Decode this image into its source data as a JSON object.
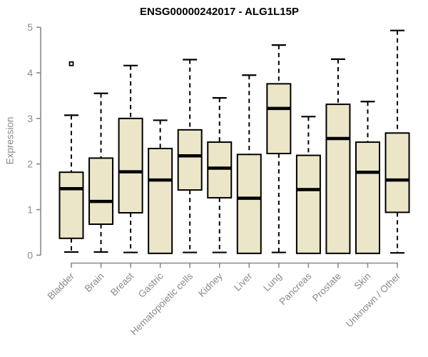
{
  "title": "ENSG00000242017 - ALG1L15P",
  "chart_data": {
    "type": "boxplot",
    "title": "ENSG00000242017 - ALG1L15P",
    "xlabel": "",
    "ylabel": "Expression",
    "ylim": [
      0,
      5
    ],
    "yticks": [
      0,
      1,
      2,
      3,
      4,
      5
    ],
    "grid": false,
    "legend": "none",
    "categories": [
      "Bladder",
      "Brain",
      "Breast",
      "Gastric",
      "Hematopoietic cells",
      "Kidney",
      "Liver",
      "Lung",
      "Pancreas",
      "Prostate",
      "Skin",
      "Unknown / Other"
    ],
    "series": [
      {
        "category": "Bladder",
        "lower": 0.07,
        "q1": 0.37,
        "median": 1.46,
        "q3": 1.82,
        "upper": 3.07,
        "outliers": [
          4.2
        ]
      },
      {
        "category": "Brain",
        "lower": 0.07,
        "q1": 0.68,
        "median": 1.18,
        "q3": 2.13,
        "upper": 3.55,
        "outliers": []
      },
      {
        "category": "Breast",
        "lower": 0.06,
        "q1": 0.93,
        "median": 1.83,
        "q3": 3.0,
        "upper": 4.16,
        "outliers": []
      },
      {
        "category": "Gastric",
        "lower": 0.04,
        "q1": 0.04,
        "median": 1.65,
        "q3": 2.34,
        "upper": 2.96,
        "outliers": []
      },
      {
        "category": "Hematopoietic cells",
        "lower": 0.06,
        "q1": 1.43,
        "median": 2.18,
        "q3": 2.75,
        "upper": 4.29,
        "outliers": []
      },
      {
        "category": "Kidney",
        "lower": 0.06,
        "q1": 1.26,
        "median": 1.91,
        "q3": 2.48,
        "upper": 3.45,
        "outliers": []
      },
      {
        "category": "Liver",
        "lower": 0.04,
        "q1": 0.04,
        "median": 1.25,
        "q3": 2.21,
        "upper": 3.95,
        "outliers": []
      },
      {
        "category": "Lung",
        "lower": 0.06,
        "q1": 2.23,
        "median": 3.22,
        "q3": 3.76,
        "upper": 4.61,
        "outliers": []
      },
      {
        "category": "Pancreas",
        "lower": 0.04,
        "q1": 0.04,
        "median": 1.44,
        "q3": 2.19,
        "upper": 3.04,
        "outliers": []
      },
      {
        "category": "Prostate",
        "lower": 0.04,
        "q1": 0.04,
        "median": 2.56,
        "q3": 3.31,
        "upper": 4.3,
        "outliers": []
      },
      {
        "category": "Skin",
        "lower": 0.04,
        "q1": 0.04,
        "median": 1.82,
        "q3": 2.48,
        "upper": 3.37,
        "outliers": []
      },
      {
        "category": "Unknown / Other",
        "lower": 0.05,
        "q1": 0.94,
        "median": 1.65,
        "q3": 2.68,
        "upper": 4.93,
        "outliers": []
      }
    ],
    "colors": {
      "box_fill": "#ECE6C8",
      "box_border": "#000000",
      "median": "#000000",
      "whisker": "#000000",
      "outlier": "#000000",
      "axis": "#8a8a8a",
      "tick_label": "#8a8a8a",
      "title": "#000000"
    }
  }
}
